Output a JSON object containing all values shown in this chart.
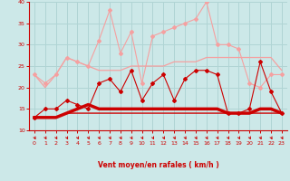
{
  "x": [
    0,
    1,
    2,
    3,
    4,
    5,
    6,
    7,
    8,
    9,
    10,
    11,
    12,
    13,
    14,
    15,
    16,
    17,
    18,
    19,
    20,
    21,
    22,
    23
  ],
  "series_rafales_light": [
    23,
    21,
    23,
    27,
    26,
    25,
    31,
    38,
    28,
    33,
    21,
    32,
    33,
    34,
    35,
    36,
    40,
    30,
    30,
    29,
    21,
    20,
    23,
    23
  ],
  "series_moyen_light": [
    23,
    20,
    23,
    27,
    26,
    25,
    24,
    24,
    24,
    25,
    25,
    25,
    25,
    26,
    26,
    26,
    27,
    27,
    27,
    27,
    27,
    27,
    27,
    24
  ],
  "series_rafales_dark": [
    13,
    15,
    15,
    17,
    16,
    15,
    21,
    22,
    19,
    24,
    17,
    21,
    23,
    17,
    22,
    24,
    24,
    23,
    14,
    14,
    15,
    26,
    19,
    14
  ],
  "series_moyen_dark": [
    13,
    13,
    13,
    14,
    15,
    16,
    15,
    15,
    15,
    15,
    15,
    15,
    15,
    15,
    15,
    15,
    15,
    15,
    14,
    14,
    14,
    15,
    15,
    14
  ],
  "series_flat": [
    13,
    13,
    13,
    14,
    14,
    14,
    14,
    14,
    14,
    14,
    14,
    14,
    14,
    14,
    14,
    14,
    14,
    14,
    14,
    14,
    14,
    14,
    14,
    14
  ],
  "color_light": "#f5a0a0",
  "color_dark": "#cc0000",
  "bg_color": "#cce8e8",
  "grid_color": "#b0d4d4",
  "xlabel": "Vent moyen/en rafales ( km/h )",
  "xlabel_color": "#cc0000",
  "tick_color": "#cc0000",
  "arrow_color": "#cc0000",
  "ylim": [
    10,
    40
  ],
  "yticks": [
    10,
    15,
    20,
    25,
    30,
    35,
    40
  ],
  "xticks": [
    0,
    1,
    2,
    3,
    4,
    5,
    6,
    7,
    8,
    9,
    10,
    11,
    12,
    13,
    14,
    15,
    16,
    17,
    18,
    19,
    20,
    21,
    22,
    23
  ]
}
